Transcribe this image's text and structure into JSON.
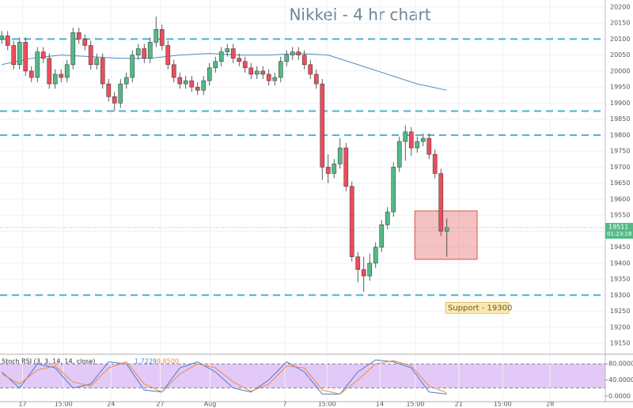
{
  "chart_data": [
    {
      "type": "candlestick",
      "title": "Nikkei - 4 hr chart",
      "xlim": [
        -0.3,
        101.7
      ],
      "xticks": [
        {
          "value": 3.5,
          "label": "17"
        },
        {
          "value": 10.4,
          "label": "15:00"
        },
        {
          "value": 18.4,
          "label": "24"
        },
        {
          "value": 26.7,
          "label": "27"
        },
        {
          "value": 35.1,
          "label": "Aug"
        },
        {
          "value": 47.7,
          "label": "7"
        },
        {
          "value": 54.8,
          "label": "15:00"
        },
        {
          "value": 63.7,
          "label": "14"
        },
        {
          "value": 69.7,
          "label": "15:00"
        },
        {
          "value": 77,
          "label": "21"
        },
        {
          "value": 84.4,
          "label": "15:00"
        },
        {
          "value": 92.4,
          "label": "28"
        }
      ],
      "ylim": [
        19118,
        20222
      ],
      "yticks": [
        20200,
        20150,
        20100,
        20050,
        20000,
        19950,
        19900,
        19850,
        19800,
        19750,
        19700,
        19650,
        19600,
        19550,
        19500,
        19450,
        19400,
        19350,
        19300,
        19250,
        19200,
        19150
      ],
      "grid": true,
      "up_color": "#53b987",
      "down_color": "#eb4d5c",
      "ohlc": [
        [
          20100,
          20125,
          20085,
          20110
        ],
        [
          20110,
          20125,
          20065,
          20080
        ],
        [
          20080,
          20095,
          20005,
          20020
        ],
        [
          20020,
          20105,
          20005,
          20090
        ],
        [
          20090,
          20105,
          19985,
          20000
        ],
        [
          20000,
          20015,
          19965,
          19980
        ],
        [
          19980,
          20075,
          19965,
          20060
        ],
        [
          20060,
          20075,
          20025,
          20040
        ],
        [
          20040,
          20055,
          19945,
          19960
        ],
        [
          19960,
          20005,
          19945,
          19990
        ],
        [
          19990,
          20005,
          19965,
          19980
        ],
        [
          19980,
          20035,
          19965,
          20020
        ],
        [
          20020,
          20135,
          20005,
          20120
        ],
        [
          20120,
          20135,
          20085,
          20100
        ],
        [
          20100,
          20115,
          20065,
          20080
        ],
        [
          20080,
          20095,
          20005,
          20020
        ],
        [
          20020,
          20055,
          20005,
          20040
        ],
        [
          20040,
          20055,
          19945,
          19960
        ],
        [
          19960,
          19975,
          19905,
          19920
        ],
        [
          19920,
          19935,
          19875,
          19900
        ],
        [
          19900,
          19975,
          19885,
          19960
        ],
        [
          19960,
          19995,
          19945,
          19980
        ],
        [
          19980,
          20065,
          19965,
          20050
        ],
        [
          20050,
          20085,
          20035,
          20070
        ],
        [
          20070,
          20085,
          20025,
          20040
        ],
        [
          20040,
          20105,
          20025,
          20090
        ],
        [
          20090,
          20170,
          20075,
          20130
        ],
        [
          20130,
          20145,
          20065,
          20080
        ],
        [
          20080,
          20095,
          20005,
          20020
        ],
        [
          20020,
          20035,
          19965,
          19980
        ],
        [
          19980,
          19995,
          19945,
          19960
        ],
        [
          19960,
          19985,
          19945,
          19970
        ],
        [
          19970,
          19985,
          19935,
          19950
        ],
        [
          19950,
          19965,
          19925,
          19940
        ],
        [
          19940,
          19985,
          19925,
          19970
        ],
        [
          19970,
          20025,
          19955,
          20010
        ],
        [
          20010,
          20045,
          19995,
          20030
        ],
        [
          20030,
          20075,
          20015,
          20060
        ],
        [
          20060,
          20085,
          20045,
          20070
        ],
        [
          20070,
          20085,
          20025,
          20040
        ],
        [
          20040,
          20055,
          20015,
          20030
        ],
        [
          20030,
          20045,
          19995,
          20010
        ],
        [
          20010,
          20025,
          19975,
          19990
        ],
        [
          19990,
          20015,
          19975,
          20000
        ],
        [
          20000,
          20015,
          19975,
          19990
        ],
        [
          19990,
          20005,
          19955,
          19970
        ],
        [
          19970,
          19995,
          19955,
          19980
        ],
        [
          19980,
          20045,
          19965,
          20030
        ],
        [
          20030,
          20065,
          20015,
          20050
        ],
        [
          20050,
          20075,
          20035,
          20060
        ],
        [
          20060,
          20075,
          20035,
          20050
        ],
        [
          20050,
          20065,
          20005,
          20020
        ],
        [
          20020,
          20035,
          19975,
          19990
        ],
        [
          19990,
          20005,
          19945,
          19960
        ],
        [
          19960,
          19975,
          19660,
          19700
        ],
        [
          19700,
          19740,
          19650,
          19680
        ],
        [
          19680,
          19725,
          19665,
          19710
        ],
        [
          19710,
          19790,
          19695,
          19760
        ],
        [
          19760,
          19775,
          19625,
          19640
        ],
        [
          19640,
          19655,
          19405,
          19420
        ],
        [
          19420,
          19435,
          19340,
          19380
        ],
        [
          19380,
          19420,
          19310,
          19360
        ],
        [
          19360,
          19430,
          19345,
          19400
        ],
        [
          19400,
          19465,
          19385,
          19450
        ],
        [
          19450,
          19535,
          19435,
          19520
        ],
        [
          19520,
          19575,
          19505,
          19560
        ],
        [
          19560,
          19715,
          19545,
          19700
        ],
        [
          19700,
          19795,
          19685,
          19780
        ],
        [
          19780,
          19830,
          19720,
          19810
        ],
        [
          19810,
          19825,
          19735,
          19760
        ],
        [
          19760,
          19795,
          19745,
          19780
        ],
        [
          19780,
          19805,
          19765,
          19790
        ],
        [
          19790,
          19805,
          19725,
          19740
        ],
        [
          19740,
          19755,
          19665,
          19680
        ],
        [
          19680,
          19695,
          19485,
          19500
        ],
        [
          19500,
          19540,
          19420,
          19511
        ]
      ],
      "moving_average": {
        "color": "#4a8cc4",
        "x": [
          0,
          5,
          10,
          15,
          20,
          25,
          30,
          35,
          40,
          45,
          50,
          55,
          60,
          65,
          70,
          75
        ],
        "values": [
          20020,
          20040,
          20050,
          20045,
          20040,
          20040,
          20050,
          20055,
          20050,
          20050,
          20055,
          20050,
          20020,
          19990,
          19960,
          19940
        ]
      },
      "levels": {
        "color": "#45b3cf",
        "values": [
          20100,
          19875,
          19800,
          19300
        ]
      },
      "zone": {
        "x": [
          69.6,
          80.1
        ],
        "y": [
          19412,
          19563
        ],
        "color": "#e8777b"
      },
      "annotation": "Support - 19300",
      "last_price": {
        "value": 19511,
        "countdown": "01:23:18",
        "color": "#53b987"
      }
    },
    {
      "type": "line",
      "title": "Stoch RSI (3, 3, 14, 14, close)",
      "readouts": [
        1.7229,
        9.85
      ],
      "readout_labels": [
        "1.7229",
        "9.8500"
      ],
      "x": [
        0,
        3,
        6,
        9,
        12,
        15,
        18,
        21,
        24,
        27,
        30,
        33,
        36,
        39,
        42,
        45,
        48,
        51,
        54,
        57,
        60,
        63,
        66,
        69,
        72,
        75
      ],
      "series": [
        {
          "color": "#3f7fd6",
          "values": [
            60,
            20,
            80,
            70,
            20,
            30,
            85,
            80,
            15,
            10,
            70,
            85,
            60,
            20,
            10,
            40,
            85,
            60,
            5,
            5,
            60,
            90,
            85,
            70,
            10,
            5
          ]
        },
        {
          "color": "#f08a3c",
          "values": [
            55,
            30,
            65,
            75,
            35,
            25,
            70,
            85,
            30,
            10,
            55,
            80,
            70,
            35,
            12,
            30,
            75,
            70,
            15,
            5,
            40,
            80,
            88,
            75,
            25,
            8
          ]
        }
      ],
      "ylim": [
        -14,
        100
      ],
      "yticks": [
        {
          "value": 80,
          "label": "80.0000"
        },
        {
          "value": 40,
          "label": "40.0000"
        },
        {
          "value": 0,
          "label": "0.0000"
        }
      ],
      "band": [
        20,
        80
      ],
      "band_color": "#e3c9f7"
    }
  ]
}
